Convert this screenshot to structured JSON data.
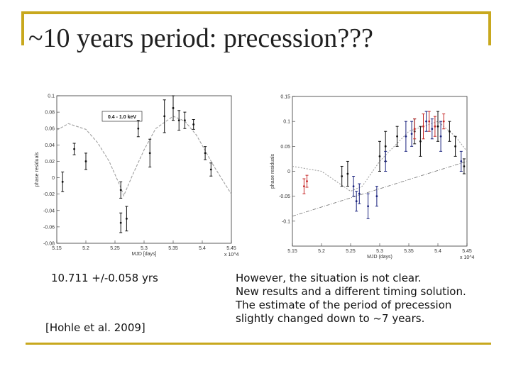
{
  "slide": {
    "title": "~10 years period: precession???",
    "left_caption": "10.711 +/-0.058 yrs",
    "left_reference": "[Hohle et al. 2009]",
    "right_lines": [
      "However, the situation is not clear.",
      "New results and a different timing solution.",
      "The estimate of the period of precession",
      "slightly changed down to ~7 years."
    ]
  },
  "colors": {
    "accent": "#c8a81e",
    "curve": "#a0a0a0",
    "blue_points": "#1a237e",
    "red_points": "#c62828",
    "black_points": "#111111"
  },
  "chart_data": [
    {
      "type": "scatter",
      "title": "",
      "legend": "0.4 - 1.0 keV",
      "xlabel": "MJD [days]",
      "ylabel": "phase residuals",
      "x_multiplier": "x 10^4",
      "xlim": [
        5.15,
        5.45
      ],
      "ylim": [
        -0.08,
        0.1
      ],
      "xticks": [
        "5.15",
        "5.2",
        "5.25",
        "5.3",
        "5.35",
        "5.4",
        "5.45"
      ],
      "yticks": [
        "0.1",
        "0.08",
        "0.06",
        "0.04",
        "0.02",
        "0",
        "-0.02",
        "-0.04",
        "-0.06",
        "-0.08"
      ],
      "grid": false,
      "fit_curve": {
        "style": "dashed",
        "x": [
          5.15,
          5.17,
          5.2,
          5.22,
          5.24,
          5.26,
          5.265,
          5.28,
          5.3,
          5.32,
          5.35,
          5.37,
          5.39,
          5.42,
          5.45
        ],
        "y": [
          0.058,
          0.066,
          0.059,
          0.043,
          0.02,
          -0.012,
          -0.022,
          0.003,
          0.034,
          0.06,
          0.075,
          0.069,
          0.052,
          0.014,
          -0.02
        ]
      },
      "series": [
        {
          "x": [
            5.16,
            5.18,
            5.2,
            5.26,
            5.26,
            5.27,
            5.29,
            5.31,
            5.335,
            5.35,
            5.36,
            5.37,
            5.385,
            5.405,
            5.415
          ],
          "y": [
            -0.005,
            0.035,
            0.02,
            -0.015,
            -0.055,
            -0.05,
            0.06,
            0.03,
            0.075,
            0.085,
            0.07,
            0.07,
            0.065,
            0.03,
            0.01
          ],
          "err": [
            0.012,
            0.007,
            0.01,
            0.01,
            0.012,
            0.015,
            0.01,
            0.017,
            0.02,
            0.015,
            0.012,
            0.01,
            0.006,
            0.008,
            0.008
          ]
        }
      ]
    },
    {
      "type": "scatter",
      "title": "",
      "xlabel": "MJD (days)",
      "ylabel": "phase residuals",
      "x_multiplier": "x 10^4",
      "xlim": [
        5.15,
        5.45
      ],
      "ylim": [
        -0.15,
        0.15
      ],
      "xticks": [
        "5.15",
        "5.2",
        "5.25",
        "5.3",
        "5.35",
        "5.4",
        "5.45"
      ],
      "yticks": [
        "0.15",
        "0.1",
        "0.05",
        "0",
        "-0.05",
        "-0.1"
      ],
      "grid": false,
      "fit_curve": {
        "style": "dotted",
        "x": [
          5.15,
          5.2,
          5.25,
          5.27,
          5.3,
          5.35,
          5.4,
          5.43,
          5.45
        ],
        "y": [
          0.01,
          0.0,
          -0.04,
          -0.03,
          0.02,
          0.08,
          0.1,
          0.07,
          0.04
        ]
      },
      "trend_line": {
        "style": "dash-dot",
        "x": [
          5.15,
          5.45
        ],
        "y": [
          -0.09,
          0.02
        ]
      },
      "series": [
        {
          "name": "",
          "color": "#111111",
          "x": [
            5.235,
            5.245,
            5.3,
            5.31,
            5.33,
            5.36,
            5.37,
            5.4,
            5.42,
            5.43,
            5.445
          ],
          "y": [
            -0.01,
            -0.005,
            0.03,
            0.05,
            0.07,
            0.08,
            0.06,
            0.09,
            0.08,
            0.05,
            0.01
          ],
          "err": [
            0.02,
            0.025,
            0.03,
            0.03,
            0.02,
            0.025,
            0.03,
            0.03,
            0.02,
            0.02,
            0.015
          ]
        },
        {
          "name": "",
          "color": "#1a237e",
          "x": [
            5.255,
            5.26,
            5.265,
            5.28,
            5.295,
            5.31,
            5.345,
            5.355,
            5.38,
            5.39,
            5.405,
            5.44
          ],
          "y": [
            -0.03,
            -0.06,
            -0.045,
            -0.07,
            -0.05,
            0.02,
            0.07,
            0.075,
            0.1,
            0.085,
            0.07,
            0.02
          ],
          "err": [
            0.02,
            0.02,
            0.02,
            0.025,
            0.02,
            0.02,
            0.03,
            0.025,
            0.02,
            0.02,
            0.03,
            0.02
          ]
        },
        {
          "name": "",
          "color": "#c62828",
          "x": [
            5.17,
            5.175,
            5.36,
            5.375,
            5.385,
            5.395,
            5.41
          ],
          "y": [
            -0.03,
            -0.02,
            0.085,
            0.09,
            0.1,
            0.09,
            0.1
          ],
          "err": [
            0.015,
            0.012,
            0.02,
            0.025,
            0.02,
            0.02,
            0.015
          ]
        }
      ]
    }
  ]
}
